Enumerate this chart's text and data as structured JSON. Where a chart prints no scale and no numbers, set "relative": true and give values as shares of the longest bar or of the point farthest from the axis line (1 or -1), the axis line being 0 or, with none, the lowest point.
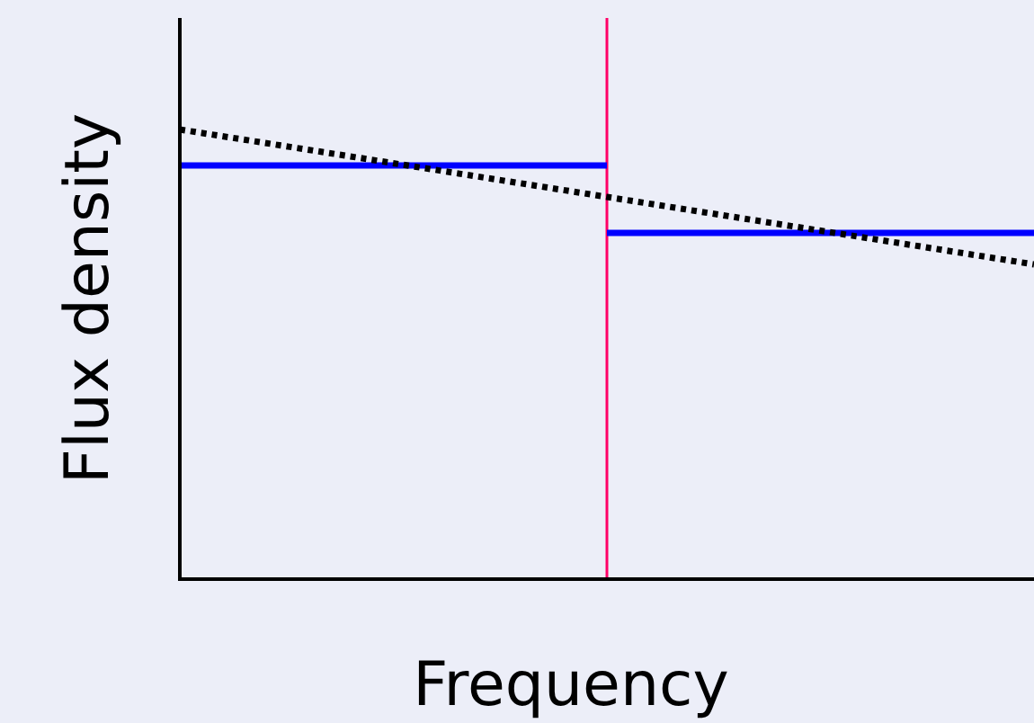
{
  "chart_data": {
    "type": "line",
    "relative": true,
    "xlabel": "Frequency",
    "ylabel": "Flux density",
    "categories": [
      null,
      null,
      null
    ],
    "series": [
      {
        "type": "step",
        "color": "#0000ff",
        "values": [
          0.92,
          0.77,
          0.77
        ],
        "line_style": "solid"
      },
      {
        "type": "line",
        "color": "#000000",
        "values": [
          1,
          0.85,
          0.7
        ],
        "line_style": "dotted"
      }
    ]
  }
}
